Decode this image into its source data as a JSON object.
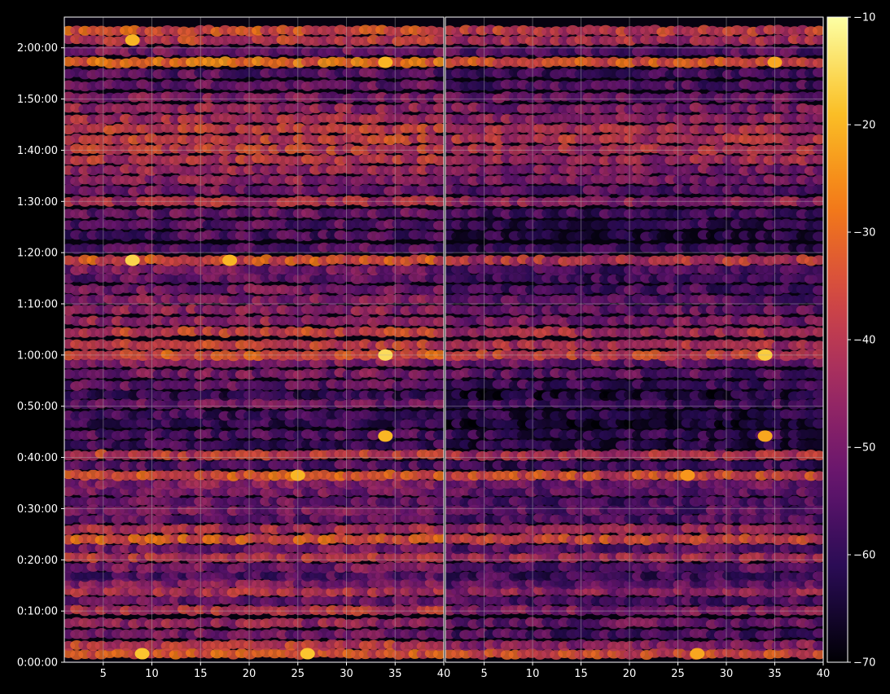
{
  "chart_data": [
    {
      "type": "heatmap",
      "panel": "left",
      "title": "",
      "xlabel": "",
      "ylabel": "",
      "xlim": [
        1,
        40
      ],
      "ylim_seconds": [
        0,
        7560
      ],
      "x_ticks": [
        5,
        10,
        15,
        20,
        25,
        30,
        35,
        40
      ],
      "x_tick_labels": [
        "5",
        "10",
        "15",
        "20",
        "25",
        "30",
        "35",
        "40"
      ],
      "y_ticks_seconds": [
        0,
        600,
        1200,
        1800,
        2400,
        3000,
        3600,
        4200,
        4800,
        5400,
        6000,
        6600,
        7200
      ],
      "y_tick_labels": [
        "0:00:00",
        "0:10:00",
        "0:20:00",
        "0:30:00",
        "0:40:00",
        "0:50:00",
        "1:00:00",
        "1:10:00",
        "1:20:00",
        "1:30:00",
        "1:40:00",
        "1:50:00",
        "2:00:00"
      ],
      "grid": true,
      "bands": [
        {
          "t": 100,
          "level": -33
        },
        {
          "t": 200,
          "level": -38
        },
        {
          "t": 330,
          "level": -50
        },
        {
          "t": 460,
          "level": -45
        },
        {
          "t": 610,
          "level": -40
        },
        {
          "t": 720,
          "level": -52
        },
        {
          "t": 830,
          "level": -42
        },
        {
          "t": 920,
          "level": -48
        },
        {
          "t": 1010,
          "level": -55
        },
        {
          "t": 1110,
          "level": -50
        },
        {
          "t": 1230,
          "level": -40
        },
        {
          "t": 1330,
          "level": -50
        },
        {
          "t": 1440,
          "level": -33
        },
        {
          "t": 1560,
          "level": -42
        },
        {
          "t": 1680,
          "level": -54
        },
        {
          "t": 1780,
          "level": -50
        },
        {
          "t": 1880,
          "level": -52
        },
        {
          "t": 2000,
          "level": -50
        },
        {
          "t": 2090,
          "level": -48
        },
        {
          "t": 2190,
          "level": -33
        },
        {
          "t": 2310,
          "level": -55
        },
        {
          "t": 2430,
          "level": -38
        },
        {
          "t": 2550,
          "level": -58
        },
        {
          "t": 2670,
          "level": -55
        },
        {
          "t": 2800,
          "level": -60
        },
        {
          "t": 2900,
          "level": -58
        },
        {
          "t": 3030,
          "level": -52
        },
        {
          "t": 3130,
          "level": -60
        },
        {
          "t": 3250,
          "level": -53
        },
        {
          "t": 3380,
          "level": -50
        },
        {
          "t": 3510,
          "level": -48
        },
        {
          "t": 3600,
          "level": -34
        },
        {
          "t": 3720,
          "level": -38
        },
        {
          "t": 3870,
          "level": -37
        },
        {
          "t": 4000,
          "level": -45
        },
        {
          "t": 4130,
          "level": -46
        },
        {
          "t": 4250,
          "level": -48
        },
        {
          "t": 4370,
          "level": -50
        },
        {
          "t": 4500,
          "level": -53
        },
        {
          "t": 4600,
          "level": -50
        },
        {
          "t": 4710,
          "level": -34
        },
        {
          "t": 4850,
          "level": -54
        },
        {
          "t": 5000,
          "level": -56
        },
        {
          "t": 5130,
          "level": -54
        },
        {
          "t": 5260,
          "level": -52
        },
        {
          "t": 5400,
          "level": -42
        },
        {
          "t": 5530,
          "level": -50
        },
        {
          "t": 5650,
          "level": -46
        },
        {
          "t": 5770,
          "level": -44
        },
        {
          "t": 5890,
          "level": -40
        },
        {
          "t": 6010,
          "level": -38
        },
        {
          "t": 6130,
          "level": -37
        },
        {
          "t": 6250,
          "level": -38
        },
        {
          "t": 6370,
          "level": -42
        },
        {
          "t": 6490,
          "level": -45
        },
        {
          "t": 6620,
          "level": -48
        },
        {
          "t": 6760,
          "level": -52
        },
        {
          "t": 6900,
          "level": -54
        },
        {
          "t": 7030,
          "level": -30
        },
        {
          "t": 7160,
          "level": -50
        },
        {
          "t": 7290,
          "level": -38
        },
        {
          "t": 7400,
          "level": -34
        }
      ],
      "hotspots": [
        {
          "x": 9,
          "t": 100,
          "level": -18
        },
        {
          "x": 26,
          "t": 100,
          "level": -18
        },
        {
          "x": 34,
          "t": 3600,
          "level": -15
        },
        {
          "x": 34,
          "t": 2650,
          "level": -20
        },
        {
          "x": 8,
          "t": 4710,
          "level": -16
        },
        {
          "x": 18,
          "t": 4710,
          "level": -20
        },
        {
          "x": 25,
          "t": 2190,
          "level": -20
        },
        {
          "x": 8,
          "t": 7290,
          "level": -20
        },
        {
          "x": 34,
          "t": 7030,
          "level": -20
        }
      ]
    },
    {
      "type": "heatmap",
      "panel": "right",
      "title": "",
      "xlabel": "",
      "ylabel": "",
      "xlim": [
        1,
        40
      ],
      "ylim_seconds": [
        0,
        7560
      ],
      "x_ticks": [
        5,
        10,
        15,
        20,
        25,
        30,
        35,
        40
      ],
      "x_tick_labels": [
        "5",
        "10",
        "15",
        "20",
        "25",
        "30",
        "35",
        "40"
      ],
      "grid": true,
      "bands": [
        {
          "t": 100,
          "level": -36
        },
        {
          "t": 200,
          "level": -48
        },
        {
          "t": 330,
          "level": -56
        },
        {
          "t": 460,
          "level": -52
        },
        {
          "t": 610,
          "level": -48
        },
        {
          "t": 720,
          "level": -56
        },
        {
          "t": 830,
          "level": -46
        },
        {
          "t": 920,
          "level": -54
        },
        {
          "t": 1010,
          "level": -58
        },
        {
          "t": 1110,
          "level": -54
        },
        {
          "t": 1230,
          "level": -44
        },
        {
          "t": 1330,
          "level": -54
        },
        {
          "t": 1440,
          "level": -36
        },
        {
          "t": 1560,
          "level": -46
        },
        {
          "t": 1680,
          "level": -56
        },
        {
          "t": 1780,
          "level": -54
        },
        {
          "t": 1880,
          "level": -56
        },
        {
          "t": 2000,
          "level": -54
        },
        {
          "t": 2090,
          "level": -52
        },
        {
          "t": 2190,
          "level": -36
        },
        {
          "t": 2310,
          "level": -58
        },
        {
          "t": 2430,
          "level": -42
        },
        {
          "t": 2550,
          "level": -62
        },
        {
          "t": 2670,
          "level": -60
        },
        {
          "t": 2800,
          "level": -64
        },
        {
          "t": 2900,
          "level": -62
        },
        {
          "t": 3030,
          "level": -58
        },
        {
          "t": 3130,
          "level": -64
        },
        {
          "t": 3250,
          "level": -58
        },
        {
          "t": 3380,
          "level": -54
        },
        {
          "t": 3510,
          "level": -52
        },
        {
          "t": 3600,
          "level": -38
        },
        {
          "t": 3720,
          "level": -42
        },
        {
          "t": 3870,
          "level": -42
        },
        {
          "t": 4000,
          "level": -50
        },
        {
          "t": 4130,
          "level": -52
        },
        {
          "t": 4250,
          "level": -54
        },
        {
          "t": 4370,
          "level": -56
        },
        {
          "t": 4500,
          "level": -58
        },
        {
          "t": 4600,
          "level": -56
        },
        {
          "t": 4710,
          "level": -40
        },
        {
          "t": 4850,
          "level": -60
        },
        {
          "t": 5000,
          "level": -62
        },
        {
          "t": 5130,
          "level": -60
        },
        {
          "t": 5260,
          "level": -58
        },
        {
          "t": 5400,
          "level": -46
        },
        {
          "t": 5530,
          "level": -54
        },
        {
          "t": 5650,
          "level": -50
        },
        {
          "t": 5770,
          "level": -48
        },
        {
          "t": 5890,
          "level": -44
        },
        {
          "t": 6010,
          "level": -42
        },
        {
          "t": 6130,
          "level": -41
        },
        {
          "t": 6250,
          "level": -42
        },
        {
          "t": 6370,
          "level": -46
        },
        {
          "t": 6490,
          "level": -49
        },
        {
          "t": 6620,
          "level": -52
        },
        {
          "t": 6760,
          "level": -56
        },
        {
          "t": 6900,
          "level": -58
        },
        {
          "t": 7030,
          "level": -34
        },
        {
          "t": 7160,
          "level": -54
        },
        {
          "t": 7290,
          "level": -42
        },
        {
          "t": 7400,
          "level": -38
        }
      ],
      "hotspots": [
        {
          "x": 34,
          "t": 3600,
          "level": -17
        },
        {
          "x": 34,
          "t": 2650,
          "level": -22
        },
        {
          "x": 27,
          "t": 100,
          "level": -22
        },
        {
          "x": 35,
          "t": 7030,
          "level": -22
        },
        {
          "x": 26,
          "t": 2190,
          "level": -24
        }
      ]
    }
  ],
  "colorbar": {
    "colormap": "inferno",
    "vmin": -70,
    "vmax": -10,
    "tick_values": [
      -10,
      -20,
      -30,
      -40,
      -50,
      -60,
      -70
    ],
    "tick_labels": [
      "−10",
      "−20",
      "−30",
      "−40",
      "−50",
      "−60",
      "−70"
    ]
  },
  "colors": {
    "background": "#000000",
    "text": "#ffffff",
    "grid": "#b0b0b0"
  }
}
